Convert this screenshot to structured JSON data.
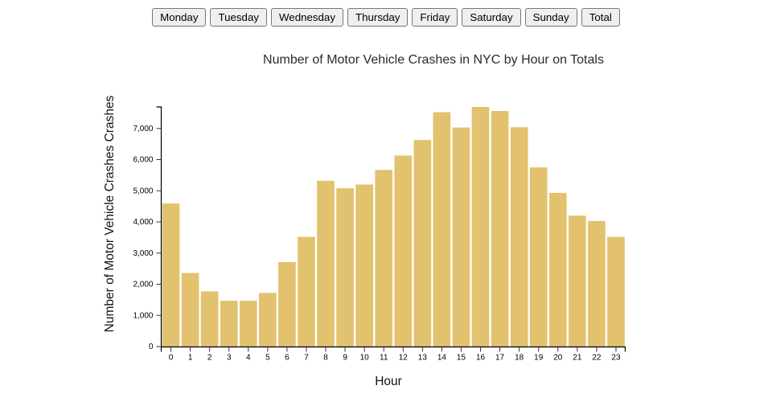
{
  "toolbar": {
    "buttons": [
      "Monday",
      "Tuesday",
      "Wednesday",
      "Thursday",
      "Friday",
      "Saturday",
      "Sunday",
      "Total"
    ]
  },
  "chart_data": {
    "type": "bar",
    "title": "Number of Motor Vehicle Crashes in NYC by Hour on Totals",
    "xlabel": "Hour",
    "ylabel": "Number of Motor Vehicle Crashes Crashes",
    "categories": [
      "0",
      "1",
      "2",
      "3",
      "4",
      "5",
      "6",
      "7",
      "8",
      "9",
      "10",
      "11",
      "12",
      "13",
      "14",
      "15",
      "16",
      "17",
      "18",
      "19",
      "20",
      "21",
      "22",
      "23"
    ],
    "values": [
      4590,
      2360,
      1770,
      1470,
      1470,
      1720,
      2710,
      3520,
      5320,
      5080,
      5200,
      5670,
      6130,
      6630,
      7520,
      7030,
      7690,
      7560,
      7040,
      5750,
      4930,
      4200,
      4030,
      3520
    ],
    "ylim": [
      0,
      7690
    ],
    "yticks": [
      0,
      1000,
      2000,
      3000,
      4000,
      5000,
      6000,
      7000
    ],
    "grid": false,
    "legend": null,
    "bar_color": "#e2c26e",
    "axis_color": "#000000",
    "tick_color": "#333333"
  }
}
